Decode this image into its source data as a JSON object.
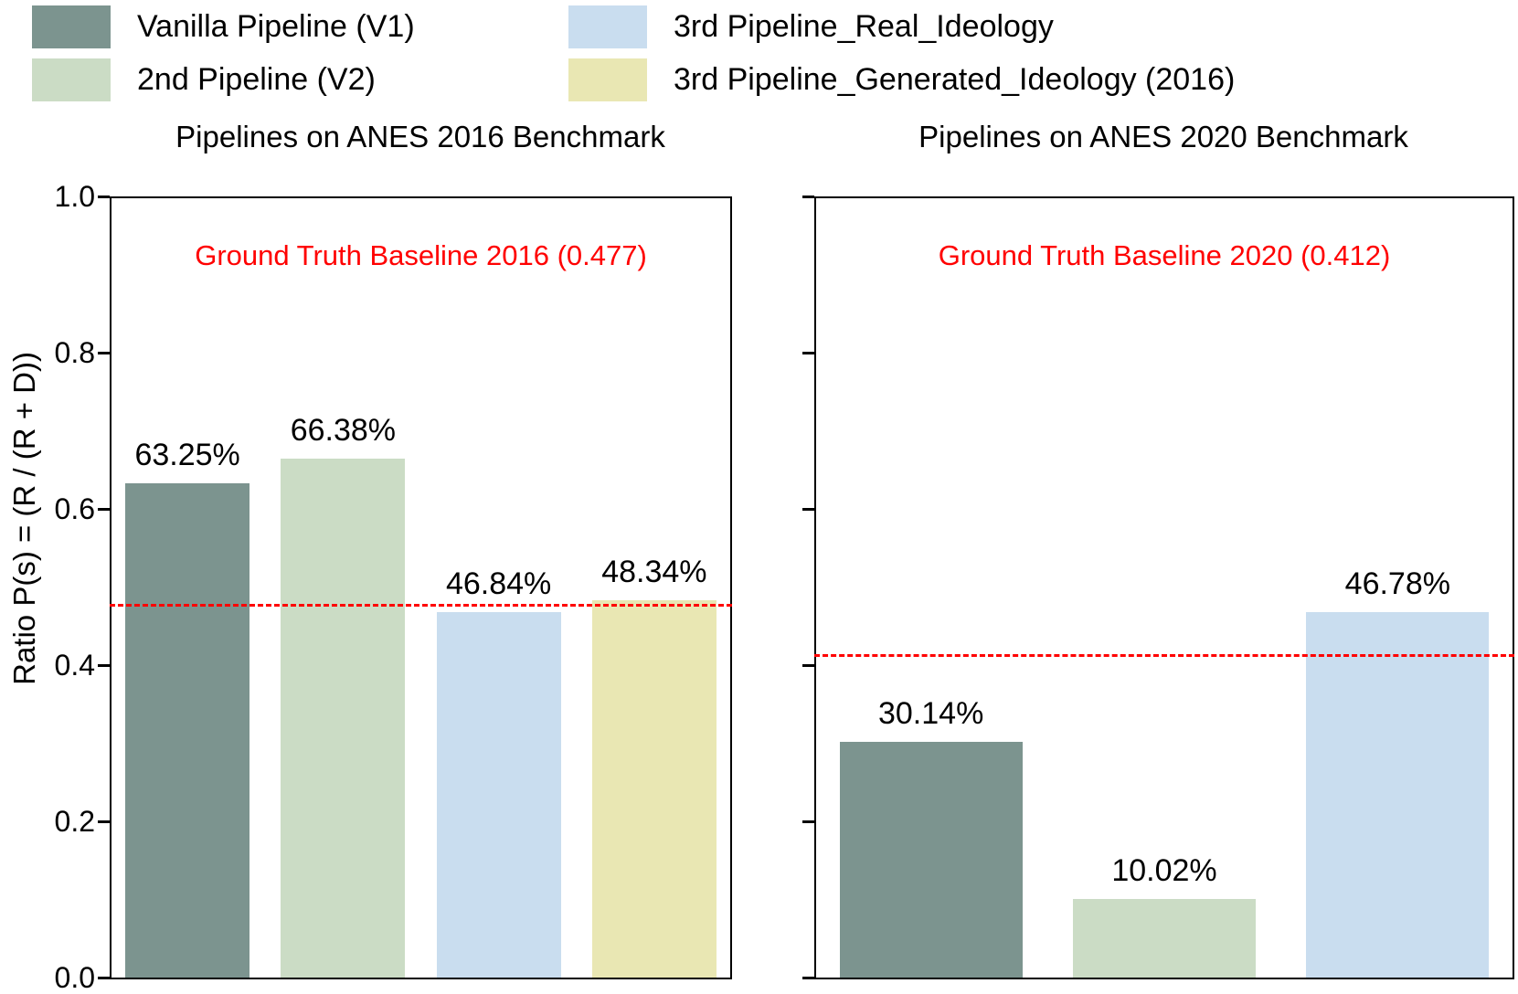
{
  "legend": {
    "items": [
      {
        "label": "Vanilla Pipeline (V1)",
        "color": "#7C948F"
      },
      {
        "label": "2nd Pipeline (V2)",
        "color": "#CBDCC5"
      },
      {
        "label": "3rd Pipeline_Real_Ideology",
        "color": "#C9DDEF"
      },
      {
        "label": "3rd Pipeline_Generated_Ideology (2016)",
        "color": "#E9E7B3"
      }
    ]
  },
  "chart_data": [
    {
      "type": "bar",
      "title": "Pipelines on ANES 2016 Benchmark",
      "ylabel": "Ratio P(s) = (R / (R + D))",
      "ylim": [
        0,
        1
      ],
      "yticks": [
        0.0,
        0.2,
        0.4,
        0.6,
        0.8,
        1.0
      ],
      "ytick_labels": [
        "0.0",
        "0.2",
        "0.4",
        "0.6",
        "0.8",
        "1.0"
      ],
      "show_ytick_labels": true,
      "grid": false,
      "categories": [
        "Vanilla Pipeline (V1)",
        "2nd Pipeline (V2)",
        "3rd Pipeline_Real_Ideology",
        "3rd Pipeline_Generated_Ideology (2016)"
      ],
      "values": [
        0.6325,
        0.6638,
        0.4684,
        0.4834
      ],
      "bar_labels": [
        "63.25%",
        "66.38%",
        "46.84%",
        "48.34%"
      ],
      "bar_colors": [
        "#7C948F",
        "#CBDCC5",
        "#C9DDEF",
        "#E9E7B3"
      ],
      "baseline": {
        "value": 0.477,
        "label": "Ground Truth Baseline 2016 (0.477)",
        "color": "#FF0000"
      }
    },
    {
      "type": "bar",
      "title": "Pipelines on ANES 2020 Benchmark",
      "ylabel": "Ratio P(s) = (R / (R + D))",
      "ylim": [
        0,
        1
      ],
      "yticks": [
        0.0,
        0.2,
        0.4,
        0.6,
        0.8,
        1.0
      ],
      "ytick_labels": [
        "0.0",
        "0.2",
        "0.4",
        "0.6",
        "0.8",
        "1.0"
      ],
      "show_ytick_labels": false,
      "grid": false,
      "categories": [
        "Vanilla Pipeline (V1)",
        "2nd Pipeline (V2)",
        "3rd Pipeline_Real_Ideology"
      ],
      "values": [
        0.3014,
        0.1002,
        0.4678
      ],
      "bar_labels": [
        "30.14%",
        "10.02%",
        "46.78%"
      ],
      "bar_colors": [
        "#7C948F",
        "#CBDCC5",
        "#C9DDEF"
      ],
      "baseline": {
        "value": 0.412,
        "label": "Ground Truth Baseline 2020 (0.412)",
        "color": "#FF0000"
      }
    }
  ]
}
